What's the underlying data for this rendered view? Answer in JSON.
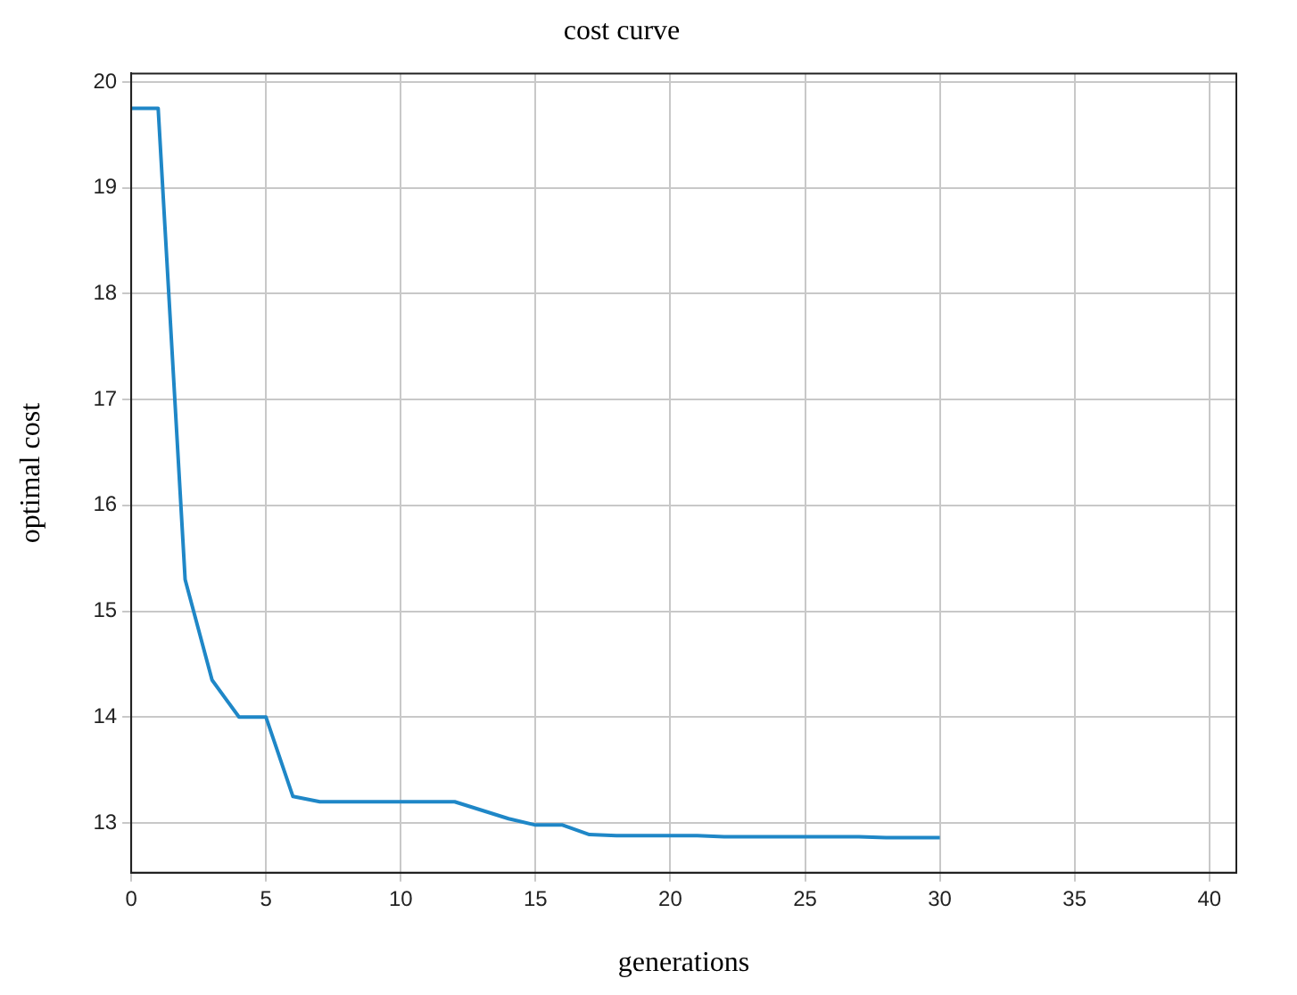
{
  "chart_data": {
    "type": "line",
    "title": "cost curve",
    "xlabel": "generations",
    "ylabel": "optimal cost",
    "x": [
      0,
      1,
      2,
      3,
      4,
      5,
      6,
      7,
      8,
      9,
      10,
      11,
      12,
      13,
      14,
      15,
      16,
      17,
      18,
      19,
      20,
      21,
      22,
      23,
      24,
      25,
      26,
      27,
      28,
      29,
      30
    ],
    "series": [
      {
        "color": "#1f87c7",
        "values": [
          19.75,
          19.75,
          15.3,
          14.35,
          14.0,
          14.0,
          13.25,
          13.2,
          13.2,
          13.2,
          13.2,
          13.2,
          13.2,
          13.12,
          13.04,
          12.98,
          12.98,
          12.89,
          12.88,
          12.88,
          12.88,
          12.88,
          12.87,
          12.87,
          12.87,
          12.87,
          12.87,
          12.87,
          12.86,
          12.86,
          12.86
        ]
      }
    ],
    "xlim": [
      0,
      41
    ],
    "ylim": [
      12.53,
      20.08
    ],
    "xticks": [
      0,
      5,
      10,
      15,
      20,
      25,
      30,
      35,
      40
    ],
    "yticks": [
      13,
      14,
      15,
      16,
      17,
      18,
      19,
      20
    ],
    "grid": true,
    "legend": false,
    "marker": "none",
    "line_style": "solid"
  }
}
